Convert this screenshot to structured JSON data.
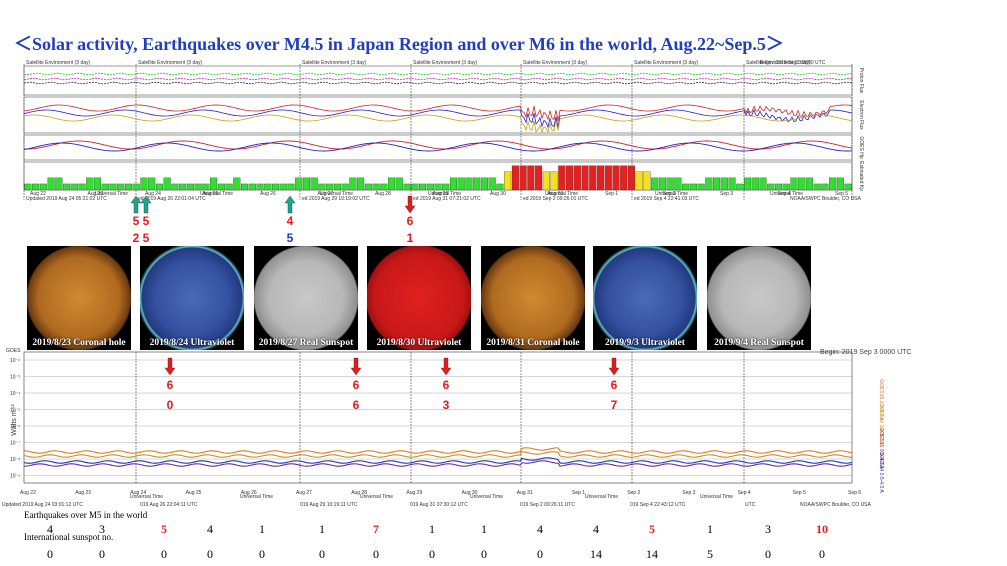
{
  "title": "＜Solar activity, Earthquakes over M4.5 in Japan Region and over M6 in the world, Aug.22~Sep.5＞",
  "colors": {
    "title": "#1f3fbf",
    "red": "#e8191b",
    "teal": "#1aa58c",
    "blue": "#2233bb",
    "green": "#33dd33",
    "yellow": "#f4e01e",
    "kpred": "#e52020"
  },
  "top_panel": {
    "panel_caption": "Satellite Environment (3 day)",
    "right_labels": [
      "Proton Flux",
      "Electron Flux",
      "GOES Hp",
      "Estimated Kp"
    ],
    "date_labels": [
      "Aug 22",
      "Aug 23",
      "Aug 24",
      "Aug 25",
      "Aug 26",
      "Aug 27",
      "Aug 28",
      "Aug 29",
      "Aug 30",
      "Aug 31",
      "Sep 1",
      "Sep 2",
      "Sep 3",
      "Sep 4",
      "Sep 5"
    ],
    "universal_time": "Universal Time",
    "updated_labels": [
      "Updated 2019 Aug 24 05:21:02 UTC",
      "ed 2019 Aug 26 22:01:04 UTC",
      "ed 2019 Aug 29 10:19:02 UTC",
      "ed 2019 Aug 31 07:21:02 UTC",
      "ed 2019 Sep 2 09:26:01 UTC",
      "ed 2019 Sep 4 22:41:03 UTC"
    ],
    "noaa": "NOAA/SWPC Boulder, CO USA",
    "begin": "Begin: 2019 Sep 3 0000 UTC"
  },
  "kp_chart": {
    "type": "bar",
    "values": [
      1,
      1,
      1,
      2,
      2,
      1,
      1,
      1,
      2,
      2,
      1,
      1,
      1,
      1,
      1,
      2,
      2,
      1,
      2,
      1,
      1,
      1,
      1,
      1,
      2,
      1,
      1,
      2,
      1,
      1,
      1,
      1,
      1,
      1,
      1,
      2,
      2,
      2,
      1,
      1,
      1,
      1,
      2,
      2,
      1,
      1,
      1,
      2,
      2,
      1,
      1,
      1,
      1,
      1,
      1,
      2,
      2,
      2,
      2,
      2,
      2,
      1,
      3,
      4,
      4,
      4,
      4,
      3,
      3,
      4,
      4,
      4,
      4,
      4,
      4,
      4,
      4,
      4,
      4,
      3,
      3,
      2,
      2,
      2,
      2,
      1,
      1,
      1,
      2,
      2,
      2,
      2,
      1,
      2,
      2,
      2,
      1,
      1,
      1,
      2,
      2,
      2,
      1,
      1,
      2,
      2,
      1
    ],
    "ylim": [
      0,
      9
    ]
  },
  "arrows_top": [
    {
      "color": "teal",
      "top": "5",
      "bottom": "2"
    },
    {
      "color": "teal",
      "top": "5",
      "bottom": "5"
    },
    {
      "color": "teal",
      "top": "4",
      "bottom": "5"
    },
    {
      "color": "red",
      "top": "6",
      "bottom": "1"
    }
  ],
  "suns": [
    {
      "label": "2019/8/23 Coronal hole",
      "kind": "coronal"
    },
    {
      "label": "2019/8/24 Ultraviolet",
      "kind": "uv"
    },
    {
      "label": "2019/8/27 Real Sunspot",
      "kind": "white"
    },
    {
      "label": "2019/8/30 Ultraviolet",
      "kind": "red"
    },
    {
      "label": "2019/8/31 Coronal hole",
      "kind": "coronal"
    },
    {
      "label": "2019/9/3 Ultraviolet",
      "kind": "uv"
    },
    {
      "label": "2019/9/4 Real Sunspot",
      "kind": "white"
    }
  ],
  "arrows_mid": [
    {
      "top": "6",
      "bottom": "0"
    },
    {
      "top": "6",
      "bottom": "6"
    },
    {
      "top": "6",
      "bottom": "3"
    },
    {
      "top": "6",
      "bottom": "7"
    }
  ],
  "xray": {
    "goes_label": "GOES",
    "begin": "Begin: 2019 Sep 3 0000 UTC",
    "yaxis": "Watts m⁻²",
    "right_labels": [
      "GOES15 1.0-8.0 A",
      "GOES14 1.0-8.0 A",
      "GOES15 0.5-4.0 A",
      "GOES14 0.5-4.0 A"
    ],
    "ticks": [
      "10⁻²",
      "10⁻³",
      "10⁻⁴",
      "10⁻⁵",
      "10⁻⁶",
      "10⁻⁷",
      "10⁻⁸",
      "10⁻⁹"
    ],
    "dates": [
      "Aug 22",
      "Aug 23",
      "Aug 24",
      "Aug 25",
      "Aug 26",
      "Aug 27",
      "Aug 28",
      "Aug 29",
      "Aug 30",
      "Aug 31",
      "Sep 1",
      "Sep 2",
      "Sep 3",
      "Sep 4",
      "Sep 5",
      "Sep 6"
    ],
    "universal_time": "Universal Time",
    "updated": [
      "Updated 2019 Aug 24 03:01:12 UTC",
      "019 Aug 26 22:04:11 UTC",
      "019 Aug 29 10:19:11 UTC",
      "019 Aug 31 07:30:12 UTC",
      "019 Sep 2 09:26:11 UTC",
      "019 Sep 4 22:43:12 UTC"
    ],
    "noaa": "NOAA/SWPC Boulder, CO USA",
    "utc": "UTC"
  },
  "table": {
    "eq_label": "Earthquakes over M5 in the world",
    "ss_label": "International sunspot no.",
    "eq_values": [
      "4",
      "3",
      "5",
      "4",
      "1",
      "1",
      "7",
      "1",
      "1",
      "4",
      "4",
      "5",
      "1",
      "3",
      "10"
    ],
    "eq_red": [
      false,
      false,
      true,
      false,
      false,
      false,
      true,
      false,
      false,
      false,
      false,
      true,
      false,
      false,
      true
    ],
    "ss_values": [
      "0",
      "0",
      "0",
      "0",
      "0",
      "0",
      "0",
      "0",
      "0",
      "0",
      "14",
      "14",
      "5",
      "0",
      "0"
    ]
  }
}
